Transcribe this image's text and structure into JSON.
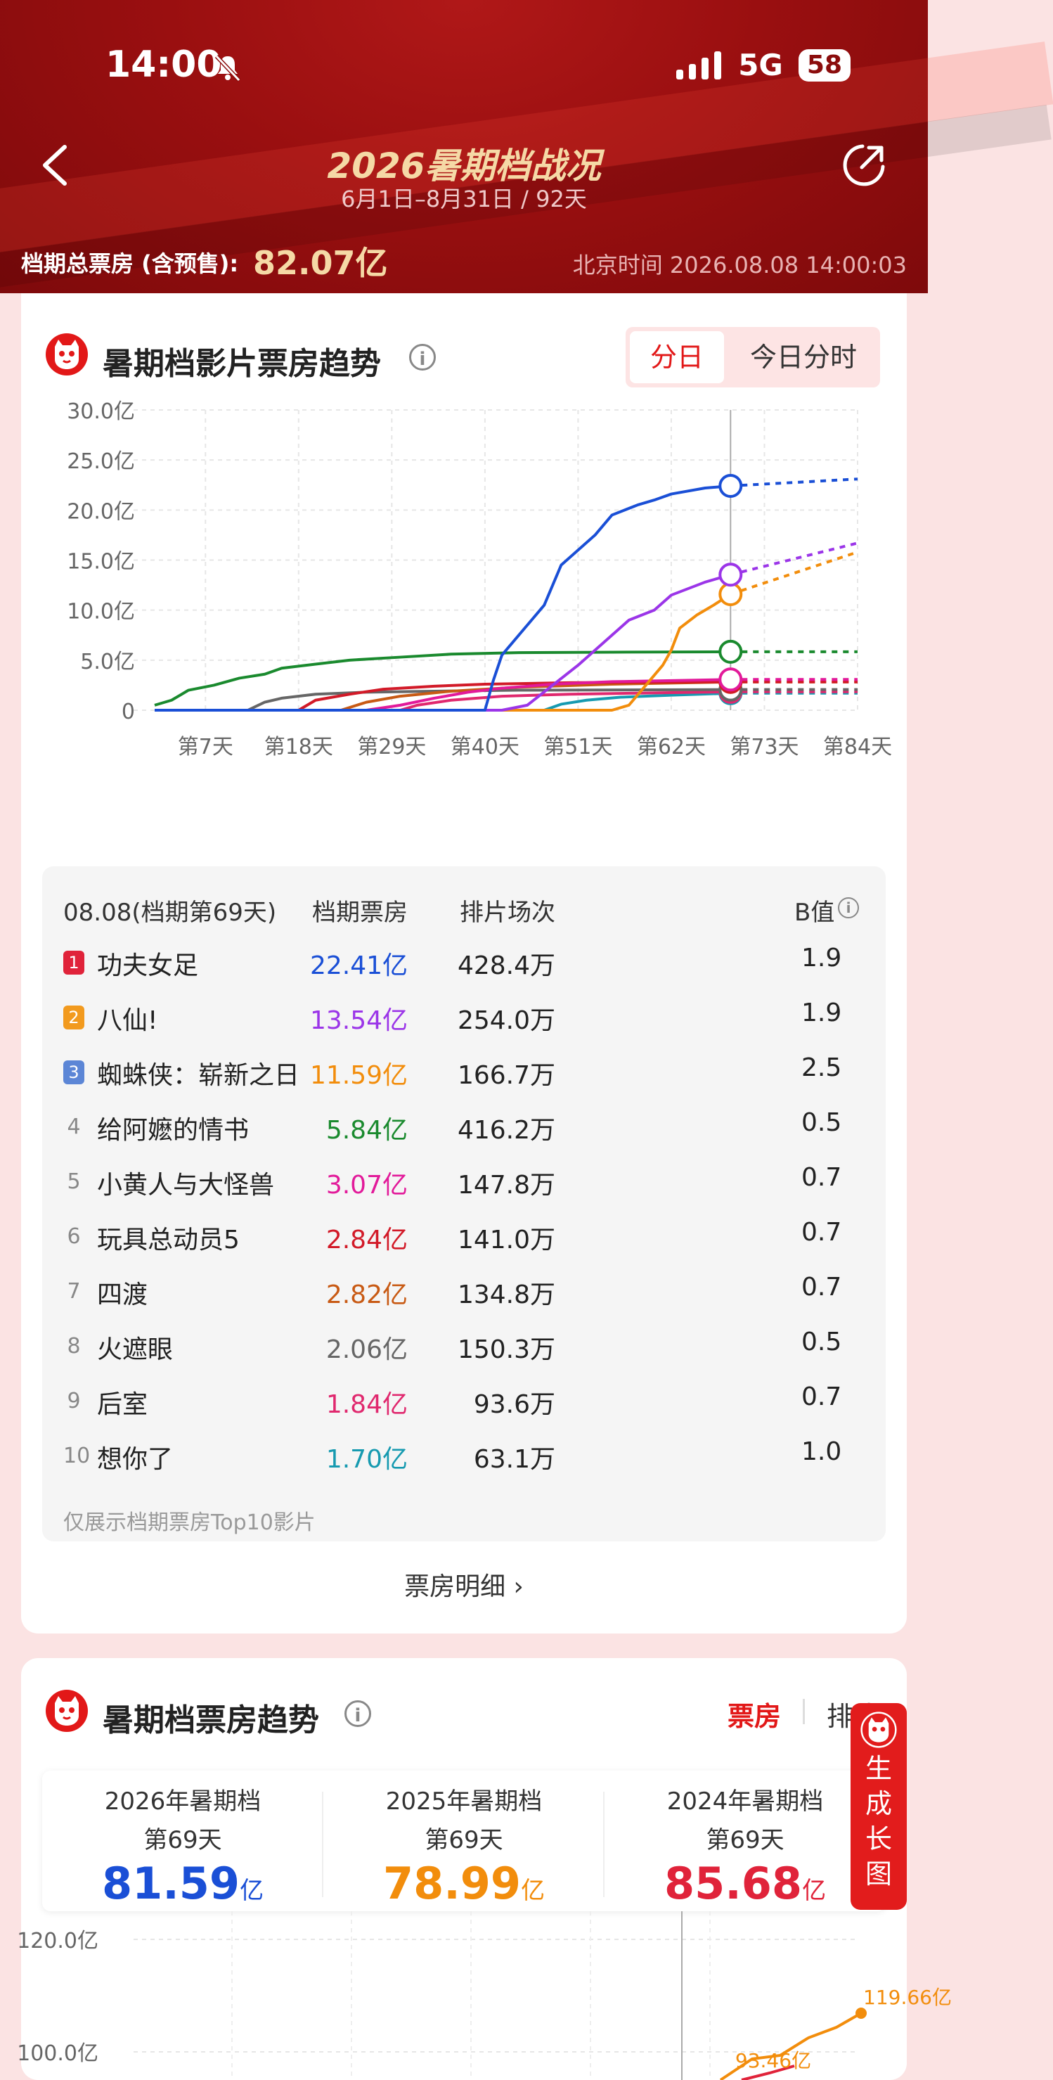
{
  "status": {
    "time": "14:00",
    "network": "5G",
    "battery": "58"
  },
  "header": {
    "title": "2026暑期档战况",
    "subtitle": "6月1日–8月31日 / 92天",
    "total_label": "档期总票房 (含预售):",
    "total_value": "82.07亿",
    "beijing_time": "北京时间 2026.08.08 14:00:03"
  },
  "trend_card": {
    "title": "暑期档影片票房趋势",
    "seg_day": "分日",
    "seg_today": "今日分时",
    "chart_data": {
      "type": "line",
      "yticks": [
        "30.0亿",
        "25.0亿",
        "20.0亿",
        "15.0亿",
        "10.0亿",
        "5.0亿",
        "0"
      ],
      "xticks": [
        "第7天",
        "第18天",
        "第29天",
        "第40天",
        "第51天",
        "第62天",
        "第73天",
        "第84天"
      ],
      "ylim": [
        0,
        30
      ],
      "xlim": [
        1,
        84
      ],
      "cursor_day": 69,
      "series": [
        {
          "color": "#1a4fd6",
          "points": [
            [
              1,
              0
            ],
            [
              40,
              0
            ],
            [
              41,
              3
            ],
            [
              42,
              5.5
            ],
            [
              45,
              8.5
            ],
            [
              47,
              10.5
            ],
            [
              49,
              14.5
            ],
            [
              53,
              17.5
            ],
            [
              55,
              19.5
            ],
            [
              58,
              20.5
            ],
            [
              60,
              21
            ],
            [
              62,
              21.6
            ],
            [
              66,
              22.2
            ],
            [
              69,
              22.41
            ]
          ],
          "proj": [
            [
              69,
              22.41
            ],
            [
              84,
              23.1
            ]
          ]
        },
        {
          "color": "#9b35e8",
          "points": [
            [
              1,
              0
            ],
            [
              42,
              0
            ],
            [
              45,
              0.5
            ],
            [
              48,
              2.5
            ],
            [
              51,
              4.5
            ],
            [
              55,
              7.5
            ],
            [
              57,
              9
            ],
            [
              60,
              10
            ],
            [
              62,
              11.5
            ],
            [
              66,
              12.8
            ],
            [
              69,
              13.54
            ]
          ],
          "proj": [
            [
              69,
              13.54
            ],
            [
              84,
              16.7
            ]
          ]
        },
        {
          "color": "#f28d0c",
          "points": [
            [
              1,
              0
            ],
            [
              55,
              0
            ],
            [
              57,
              0.5
            ],
            [
              59,
              2.5
            ],
            [
              61,
              4.5
            ],
            [
              62,
              6
            ],
            [
              63,
              8.2
            ],
            [
              65,
              9.5
            ],
            [
              67,
              10.5
            ],
            [
              69,
              11.59
            ]
          ],
          "proj": [
            [
              69,
              11.59
            ],
            [
              84,
              15.8
            ]
          ]
        },
        {
          "color": "#1a8a2e",
          "points": [
            [
              1,
              0.5
            ],
            [
              3,
              1
            ],
            [
              5,
              2
            ],
            [
              8,
              2.5
            ],
            [
              11,
              3.2
            ],
            [
              14,
              3.6
            ],
            [
              16,
              4.2
            ],
            [
              20,
              4.6
            ],
            [
              24,
              5
            ],
            [
              30,
              5.3
            ],
            [
              36,
              5.6
            ],
            [
              44,
              5.75
            ],
            [
              55,
              5.8
            ],
            [
              69,
              5.84
            ]
          ],
          "proj": [
            [
              69,
              5.84
            ],
            [
              84,
              5.84
            ]
          ]
        },
        {
          "color": "#e21a9a",
          "points": [
            [
              1,
              0
            ],
            [
              26,
              0
            ],
            [
              30,
              0.5
            ],
            [
              34,
              1.2
            ],
            [
              38,
              1.8
            ],
            [
              42,
              2.2
            ],
            [
              48,
              2.6
            ],
            [
              55,
              2.85
            ],
            [
              69,
              3.07
            ]
          ],
          "proj": [
            [
              69,
              3.07
            ],
            [
              84,
              3.07
            ]
          ]
        },
        {
          "color": "#d21a28",
          "points": [
            [
              1,
              0
            ],
            [
              18,
              0
            ],
            [
              20,
              1
            ],
            [
              24,
              1.6
            ],
            [
              28,
              2.1
            ],
            [
              34,
              2.4
            ],
            [
              40,
              2.6
            ],
            [
              50,
              2.75
            ],
            [
              69,
              2.84
            ]
          ],
          "proj": [
            [
              69,
              2.84
            ],
            [
              84,
              2.84
            ]
          ]
        },
        {
          "color": "#c85a14",
          "points": [
            [
              1,
              0
            ],
            [
              23,
              0
            ],
            [
              26,
              0.8
            ],
            [
              30,
              1.4
            ],
            [
              36,
              1.9
            ],
            [
              44,
              2.3
            ],
            [
              55,
              2.6
            ],
            [
              69,
              2.82
            ]
          ],
          "proj": [
            [
              69,
              2.82
            ],
            [
              84,
              2.82
            ]
          ]
        },
        {
          "color": "#666666",
          "points": [
            [
              1,
              0
            ],
            [
              12,
              0
            ],
            [
              14,
              0.8
            ],
            [
              16,
              1.2
            ],
            [
              20,
              1.6
            ],
            [
              26,
              1.8
            ],
            [
              34,
              1.9
            ],
            [
              44,
              2
            ],
            [
              69,
              2.06
            ]
          ],
          "proj": [
            [
              69,
              2.06
            ],
            [
              84,
              2.06
            ]
          ]
        },
        {
          "color": "#e0286e",
          "points": [
            [
              1,
              0
            ],
            [
              30,
              0
            ],
            [
              32,
              0.5
            ],
            [
              36,
              1
            ],
            [
              42,
              1.4
            ],
            [
              50,
              1.6
            ],
            [
              69,
              1.84
            ]
          ],
          "proj": [
            [
              69,
              1.84
            ],
            [
              84,
              1.84
            ]
          ]
        },
        {
          "color": "#169ab0",
          "points": [
            [
              1,
              0
            ],
            [
              47,
              0
            ],
            [
              49,
              0.6
            ],
            [
              52,
              1
            ],
            [
              56,
              1.3
            ],
            [
              62,
              1.5
            ],
            [
              69,
              1.7
            ]
          ],
          "proj": [
            [
              69,
              1.7
            ],
            [
              84,
              1.7
            ]
          ]
        }
      ]
    },
    "table": {
      "date_header": "08.08(档期第69天)",
      "col_box": "档期票房",
      "col_shows": "排片场次",
      "col_b": "B值",
      "rows": [
        {
          "rank": "1",
          "name": "功夫女足",
          "box": "22.41亿",
          "shows": "428.4万",
          "b": "1.9",
          "color": "#1a4fd6",
          "badge": "#e0233a"
        },
        {
          "rank": "2",
          "name": "八仙!",
          "box": "13.54亿",
          "shows": "254.0万",
          "b": "1.9",
          "color": "#9b35e8",
          "badge": "#f29a1e"
        },
        {
          "rank": "3",
          "name": "蜘蛛侠：崭新之日",
          "box": "11.59亿",
          "shows": "166.7万",
          "b": "2.5",
          "color": "#f28d0c",
          "badge": "#5c86d6"
        },
        {
          "rank": "4",
          "name": "给阿嬷的情书",
          "box": "5.84亿",
          "shows": "416.2万",
          "b": "0.5",
          "color": "#1a8a2e"
        },
        {
          "rank": "5",
          "name": "小黄人与大怪兽",
          "box": "3.07亿",
          "shows": "147.8万",
          "b": "0.7",
          "color": "#e21a9a"
        },
        {
          "rank": "6",
          "name": "玩具总动员5",
          "box": "2.84亿",
          "shows": "141.0万",
          "b": "0.7",
          "color": "#d21a28"
        },
        {
          "rank": "7",
          "name": "四渡",
          "box": "2.82亿",
          "shows": "134.8万",
          "b": "0.7",
          "color": "#c85a14"
        },
        {
          "rank": "8",
          "name": "火遮眼",
          "box": "2.06亿",
          "shows": "150.3万",
          "b": "0.5",
          "color": "#666666"
        },
        {
          "rank": "9",
          "name": "后室",
          "box": "1.84亿",
          "shows": "93.6万",
          "b": "0.7",
          "color": "#e0286e"
        },
        {
          "rank": "10",
          "name": "想你了",
          "box": "1.70亿",
          "shows": "63.1万",
          "b": "1.0",
          "color": "#169ab0"
        }
      ],
      "note": "仅展示档期票房Top10影片"
    },
    "detail_link": "票房明细 ›"
  },
  "summer_card": {
    "title": "暑期档票房趋势",
    "tab_box": "票房",
    "tab_shows": "排片",
    "compare": [
      {
        "year": "2026年暑期档",
        "day": "第69天",
        "value": "81.59",
        "unit": "亿",
        "color": "#1a4fd6"
      },
      {
        "year": "2025年暑期档",
        "day": "第69天",
        "value": "78.99",
        "unit": "亿",
        "color": "#f28d0c"
      },
      {
        "year": "2024年暑期档",
        "day": "第69天",
        "value": "85.68",
        "unit": "亿",
        "color": "#e0233a"
      }
    ],
    "chart_data": {
      "type": "line",
      "yticks": [
        "120.0亿",
        "100.0亿"
      ],
      "ylim": [
        95,
        125
      ],
      "labels": [
        "119.66亿",
        "93.46亿"
      ]
    }
  },
  "float_button": {
    "label": [
      "生",
      "成",
      "长",
      "图"
    ]
  }
}
